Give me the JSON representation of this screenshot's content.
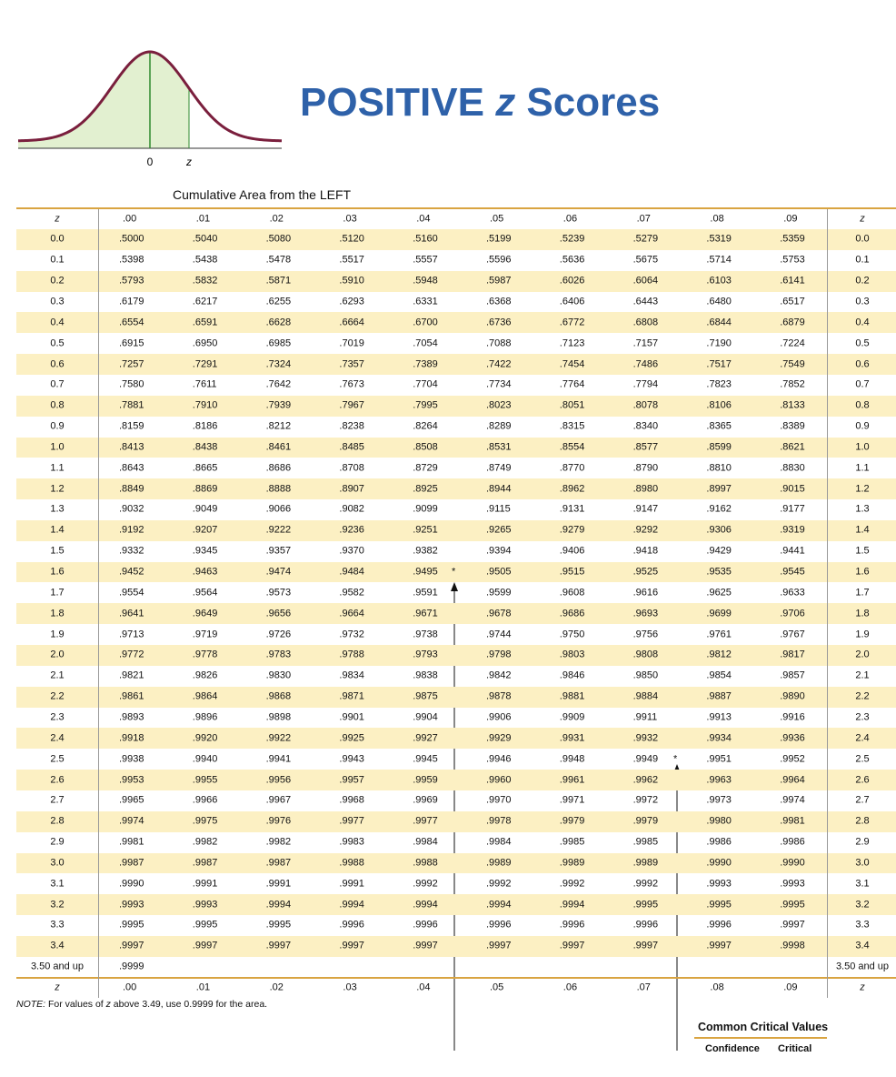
{
  "figure": {
    "labels": [
      "0",
      "z"
    ]
  },
  "header": {
    "title": [
      "POSITIVE",
      "z",
      "Scores"
    ],
    "subtitle": "Cumulative Area from the LEFT"
  },
  "table": {
    "z_label": "z",
    "columns": [
      ".00",
      ".01",
      ".02",
      ".03",
      ".04",
      ".05",
      ".06",
      ".07",
      ".08",
      ".09"
    ],
    "rows": [
      {
        "z": "0.0",
        "cells": [
          ".5000",
          ".5040",
          ".5080",
          ".5120",
          ".5160",
          ".5199",
          ".5239",
          ".5279",
          ".5319",
          ".5359"
        ]
      },
      {
        "z": "0.1",
        "cells": [
          ".5398",
          ".5438",
          ".5478",
          ".5517",
          ".5557",
          ".5596",
          ".5636",
          ".5675",
          ".5714",
          ".5753"
        ]
      },
      {
        "z": "0.2",
        "cells": [
          ".5793",
          ".5832",
          ".5871",
          ".5910",
          ".5948",
          ".5987",
          ".6026",
          ".6064",
          ".6103",
          ".6141"
        ]
      },
      {
        "z": "0.3",
        "cells": [
          ".6179",
          ".6217",
          ".6255",
          ".6293",
          ".6331",
          ".6368",
          ".6406",
          ".6443",
          ".6480",
          ".6517"
        ]
      },
      {
        "z": "0.4",
        "cells": [
          ".6554",
          ".6591",
          ".6628",
          ".6664",
          ".6700",
          ".6736",
          ".6772",
          ".6808",
          ".6844",
          ".6879"
        ]
      },
      {
        "z": "0.5",
        "cells": [
          ".6915",
          ".6950",
          ".6985",
          ".7019",
          ".7054",
          ".7088",
          ".7123",
          ".7157",
          ".7190",
          ".7224"
        ]
      },
      {
        "z": "0.6",
        "cells": [
          ".7257",
          ".7291",
          ".7324",
          ".7357",
          ".7389",
          ".7422",
          ".7454",
          ".7486",
          ".7517",
          ".7549"
        ]
      },
      {
        "z": "0.7",
        "cells": [
          ".7580",
          ".7611",
          ".7642",
          ".7673",
          ".7704",
          ".7734",
          ".7764",
          ".7794",
          ".7823",
          ".7852"
        ]
      },
      {
        "z": "0.8",
        "cells": [
          ".7881",
          ".7910",
          ".7939",
          ".7967",
          ".7995",
          ".8023",
          ".8051",
          ".8078",
          ".8106",
          ".8133"
        ]
      },
      {
        "z": "0.9",
        "cells": [
          ".8159",
          ".8186",
          ".8212",
          ".8238",
          ".8264",
          ".8289",
          ".8315",
          ".8340",
          ".8365",
          ".8389"
        ]
      },
      {
        "z": "1.0",
        "cells": [
          ".8413",
          ".8438",
          ".8461",
          ".8485",
          ".8508",
          ".8531",
          ".8554",
          ".8577",
          ".8599",
          ".8621"
        ]
      },
      {
        "z": "1.1",
        "cells": [
          ".8643",
          ".8665",
          ".8686",
          ".8708",
          ".8729",
          ".8749",
          ".8770",
          ".8790",
          ".8810",
          ".8830"
        ]
      },
      {
        "z": "1.2",
        "cells": [
          ".8849",
          ".8869",
          ".8888",
          ".8907",
          ".8925",
          ".8944",
          ".8962",
          ".8980",
          ".8997",
          ".9015"
        ]
      },
      {
        "z": "1.3",
        "cells": [
          ".9032",
          ".9049",
          ".9066",
          ".9082",
          ".9099",
          ".9115",
          ".9131",
          ".9147",
          ".9162",
          ".9177"
        ]
      },
      {
        "z": "1.4",
        "cells": [
          ".9192",
          ".9207",
          ".9222",
          ".9236",
          ".9251",
          ".9265",
          ".9279",
          ".9292",
          ".9306",
          ".9319"
        ]
      },
      {
        "z": "1.5",
        "cells": [
          ".9332",
          ".9345",
          ".9357",
          ".9370",
          ".9382",
          ".9394",
          ".9406",
          ".9418",
          ".9429",
          ".9441"
        ]
      },
      {
        "z": "1.6",
        "cells": [
          ".9452",
          ".9463",
          ".9474",
          ".9484",
          ".9495",
          ".9505",
          ".9515",
          ".9525",
          ".9535",
          ".9545"
        ]
      },
      {
        "z": "1.7",
        "cells": [
          ".9554",
          ".9564",
          ".9573",
          ".9582",
          ".9591",
          ".9599",
          ".9608",
          ".9616",
          ".9625",
          ".9633"
        ]
      },
      {
        "z": "1.8",
        "cells": [
          ".9641",
          ".9649",
          ".9656",
          ".9664",
          ".9671",
          ".9678",
          ".9686",
          ".9693",
          ".9699",
          ".9706"
        ]
      },
      {
        "z": "1.9",
        "cells": [
          ".9713",
          ".9719",
          ".9726",
          ".9732",
          ".9738",
          ".9744",
          ".9750",
          ".9756",
          ".9761",
          ".9767"
        ]
      },
      {
        "z": "2.0",
        "cells": [
          ".9772",
          ".9778",
          ".9783",
          ".9788",
          ".9793",
          ".9798",
          ".9803",
          ".9808",
          ".9812",
          ".9817"
        ]
      },
      {
        "z": "2.1",
        "cells": [
          ".9821",
          ".9826",
          ".9830",
          ".9834",
          ".9838",
          ".9842",
          ".9846",
          ".9850",
          ".9854",
          ".9857"
        ]
      },
      {
        "z": "2.2",
        "cells": [
          ".9861",
          ".9864",
          ".9868",
          ".9871",
          ".9875",
          ".9878",
          ".9881",
          ".9884",
          ".9887",
          ".9890"
        ]
      },
      {
        "z": "2.3",
        "cells": [
          ".9893",
          ".9896",
          ".9898",
          ".9901",
          ".9904",
          ".9906",
          ".9909",
          ".9911",
          ".9913",
          ".9916"
        ]
      },
      {
        "z": "2.4",
        "cells": [
          ".9918",
          ".9920",
          ".9922",
          ".9925",
          ".9927",
          ".9929",
          ".9931",
          ".9932",
          ".9934",
          ".9936"
        ]
      },
      {
        "z": "2.5",
        "cells": [
          ".9938",
          ".9940",
          ".9941",
          ".9943",
          ".9945",
          ".9946",
          ".9948",
          ".9949",
          ".9951",
          ".9952"
        ]
      },
      {
        "z": "2.6",
        "cells": [
          ".9953",
          ".9955",
          ".9956",
          ".9957",
          ".9959",
          ".9960",
          ".9961",
          ".9962",
          ".9963",
          ".9964"
        ]
      },
      {
        "z": "2.7",
        "cells": [
          ".9965",
          ".9966",
          ".9967",
          ".9968",
          ".9969",
          ".9970",
          ".9971",
          ".9972",
          ".9973",
          ".9974"
        ]
      },
      {
        "z": "2.8",
        "cells": [
          ".9974",
          ".9975",
          ".9976",
          ".9977",
          ".9977",
          ".9978",
          ".9979",
          ".9979",
          ".9980",
          ".9981"
        ]
      },
      {
        "z": "2.9",
        "cells": [
          ".9981",
          ".9982",
          ".9982",
          ".9983",
          ".9984",
          ".9984",
          ".9985",
          ".9985",
          ".9986",
          ".9986"
        ]
      },
      {
        "z": "3.0",
        "cells": [
          ".9987",
          ".9987",
          ".9987",
          ".9988",
          ".9988",
          ".9989",
          ".9989",
          ".9989",
          ".9990",
          ".9990"
        ]
      },
      {
        "z": "3.1",
        "cells": [
          ".9990",
          ".9991",
          ".9991",
          ".9991",
          ".9992",
          ".9992",
          ".9992",
          ".9992",
          ".9993",
          ".9993"
        ]
      },
      {
        "z": "3.2",
        "cells": [
          ".9993",
          ".9993",
          ".9994",
          ".9994",
          ".9994",
          ".9994",
          ".9994",
          ".9995",
          ".9995",
          ".9995"
        ]
      },
      {
        "z": "3.3",
        "cells": [
          ".9995",
          ".9995",
          ".9995",
          ".9996",
          ".9996",
          ".9996",
          ".9996",
          ".9996",
          ".9996",
          ".9997"
        ]
      },
      {
        "z": "3.4",
        "cells": [
          ".9997",
          ".9997",
          ".9997",
          ".9997",
          ".9997",
          ".9997",
          ".9997",
          ".9997",
          ".9997",
          ".9998"
        ]
      },
      {
        "z": "3.50 and up",
        "cells": [
          ".9999"
        ]
      }
    ],
    "footnote_marks": [
      "*",
      "*"
    ]
  },
  "note": [
    "NOTE:",
    " For values of ",
    "z",
    " above 3.49, use 0.9999 for the area."
  ],
  "critical_values": {
    "title": "Common Critical Values",
    "columns": [
      "Confidence",
      "Critical"
    ]
  }
}
